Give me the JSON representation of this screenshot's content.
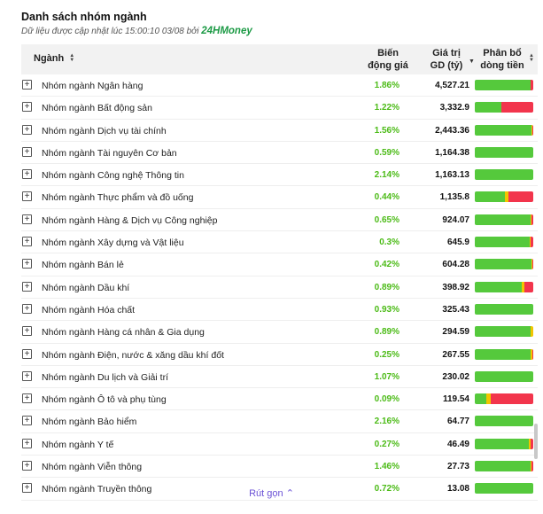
{
  "title": "Danh sách nhóm ngành",
  "subtitle": "Dữ liệu được cập nhật lúc 15:00:10 03/08 bởi",
  "brand": "24HMoney",
  "colors": {
    "up": "#55c93c",
    "flat": "#f2c500",
    "down": "#f2354c",
    "brand": "#1c9a45",
    "link": "#6b52d6"
  },
  "headers": {
    "name": "Ngành",
    "change": [
      "Biến",
      "động giá"
    ],
    "value": [
      "Giá trị",
      "GD (tỷ)"
    ],
    "flow": [
      "Phân bổ",
      "dòng tiền"
    ]
  },
  "rows": [
    {
      "name": "Nhóm ngành Ngân hàng",
      "change": "1.86%",
      "value": "4,527.21",
      "flow": {
        "up": 0.95,
        "flat": 0.01,
        "down": 0.04
      }
    },
    {
      "name": "Nhóm ngành Bất động sản",
      "change": "1.22%",
      "value": "3,332.9",
      "flow": {
        "up": 0.45,
        "flat": 0.01,
        "down": 0.54
      }
    },
    {
      "name": "Nhóm ngành Dịch vụ tài chính",
      "change": "1.56%",
      "value": "2,443.36",
      "flow": {
        "up": 0.97,
        "flat": 0.01,
        "down": 0.02
      }
    },
    {
      "name": "Nhóm ngành Tài nguyên Cơ bản",
      "change": "0.59%",
      "value": "1,164.38",
      "flow": {
        "up": 1.0,
        "flat": 0.0,
        "down": 0.0
      }
    },
    {
      "name": "Nhóm ngành Công nghệ Thông tin",
      "change": "2.14%",
      "value": "1,163.13",
      "flow": {
        "up": 1.0,
        "flat": 0.0,
        "down": 0.0
      }
    },
    {
      "name": "Nhóm ngành Thực phẩm và đồ uống",
      "change": "0.44%",
      "value": "1,135.8",
      "flow": {
        "up": 0.52,
        "flat": 0.06,
        "down": 0.42
      }
    },
    {
      "name": "Nhóm ngành Hàng & Dịch vụ Công nghiệp",
      "change": "0.65%",
      "value": "924.07",
      "flow": {
        "up": 0.96,
        "flat": 0.01,
        "down": 0.03
      }
    },
    {
      "name": "Nhóm ngành Xây dựng và Vật liệu",
      "change": "0.3%",
      "value": "645.9",
      "flow": {
        "up": 0.94,
        "flat": 0.02,
        "down": 0.04
      }
    },
    {
      "name": "Nhóm ngành Bán lẻ",
      "change": "0.42%",
      "value": "604.28",
      "flow": {
        "up": 0.97,
        "flat": 0.01,
        "down": 0.02
      }
    },
    {
      "name": "Nhóm ngành Dầu khí",
      "change": "0.89%",
      "value": "398.92",
      "flow": {
        "up": 0.81,
        "flat": 0.04,
        "down": 0.15
      }
    },
    {
      "name": "Nhóm ngành Hóa chất",
      "change": "0.93%",
      "value": "325.43",
      "flow": {
        "up": 1.0,
        "flat": 0.0,
        "down": 0.0
      }
    },
    {
      "name": "Nhóm ngành Hàng cá nhân & Gia dụng",
      "change": "0.89%",
      "value": "294.59",
      "flow": {
        "up": 0.96,
        "flat": 0.04,
        "down": 0.0
      }
    },
    {
      "name": "Nhóm ngành Điện, nước & xăng dầu khí đốt",
      "change": "0.25%",
      "value": "267.55",
      "flow": {
        "up": 0.95,
        "flat": 0.03,
        "down": 0.02
      }
    },
    {
      "name": "Nhóm ngành Du lịch và Giải trí",
      "change": "1.07%",
      "value": "230.02",
      "flow": {
        "up": 1.0,
        "flat": 0.0,
        "down": 0.0
      }
    },
    {
      "name": "Nhóm ngành Ô tô và phụ tùng",
      "change": "0.09%",
      "value": "119.54",
      "flow": {
        "up": 0.2,
        "flat": 0.08,
        "down": 0.72
      }
    },
    {
      "name": "Nhóm ngành Bảo hiểm",
      "change": "2.16%",
      "value": "64.77",
      "flow": {
        "up": 1.0,
        "flat": 0.0,
        "down": 0.0
      }
    },
    {
      "name": "Nhóm ngành Y tế",
      "change": "0.27%",
      "value": "46.49",
      "flow": {
        "up": 0.92,
        "flat": 0.03,
        "down": 0.05
      }
    },
    {
      "name": "Nhóm ngành Viễn thông",
      "change": "1.46%",
      "value": "27.73",
      "flow": {
        "up": 0.96,
        "flat": 0.01,
        "down": 0.03
      }
    },
    {
      "name": "Nhóm ngành Truyền thông",
      "change": "0.72%",
      "value": "13.08",
      "flow": {
        "up": 1.0,
        "flat": 0.0,
        "down": 0.0
      }
    }
  ],
  "collapse_label": "Rút gọn",
  "icons": {
    "expand": "plus-square-icon",
    "sort": "sort-arrows-icon",
    "sort_active": "sort-down-icon",
    "collapse": "chevron-up-icon"
  }
}
